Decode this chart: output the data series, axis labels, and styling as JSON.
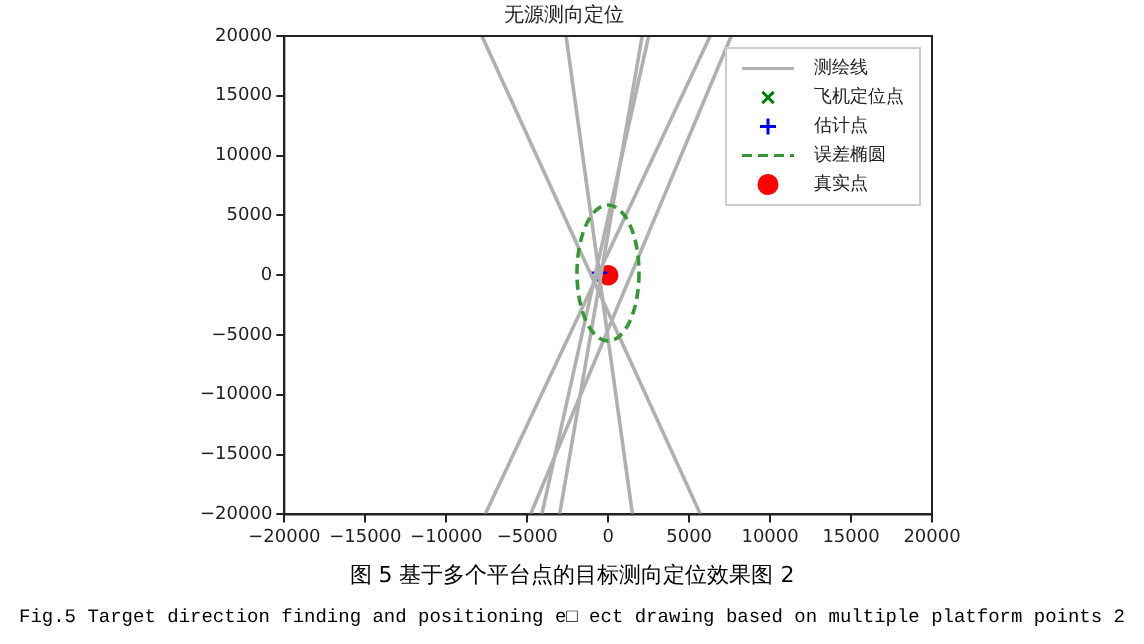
{
  "chart_data": {
    "type": "line",
    "title": "无源测向定位",
    "xlim": [
      -20000,
      20000
    ],
    "xticks": [
      -20000,
      -15000,
      -10000,
      -5000,
      0,
      5000,
      10000,
      15000,
      20000
    ],
    "ylim": [
      -20000,
      20000
    ],
    "yticks": [
      -20000,
      -15000,
      -10000,
      -5000,
      0,
      5000,
      10000,
      15000,
      20000
    ],
    "grid": false,
    "legend": "top right",
    "annotations": [
      "图 5 基于多个平台点的目标测向定位效果图 2",
      "Fig.5 Target direction finding and positioning e□ ect drawing based on multiple platform points 2"
    ],
    "series": [
      {
        "name": "测绘线",
        "color": "#b0b0b0",
        "line_style": "solid",
        "x": [
          -7800,
          5700
        ],
        "values": [
          20000,
          -20000
        ]
      },
      {
        "color": "#b0b0b0",
        "line_style": "solid",
        "x": [
          -2600,
          1500
        ],
        "values": [
          20000,
          -20000
        ]
      },
      {
        "color": "#b0b0b0",
        "line_style": "solid",
        "x": [
          2100,
          -3000
        ],
        "values": [
          20000,
          -20000
        ]
      },
      {
        "color": "#b0b0b0",
        "line_style": "solid",
        "x": [
          2500,
          -4100
        ],
        "values": [
          20000,
          -20000
        ]
      },
      {
        "color": "#b0b0b0",
        "line_style": "solid",
        "x": [
          6300,
          -7600
        ],
        "values": [
          20000,
          -20000
        ]
      },
      {
        "color": "#b0b0b0",
        "line_style": "solid",
        "x": [
          7600,
          -4800
        ],
        "values": [
          20000,
          -20000
        ]
      },
      {
        "name": "飞机定位点",
        "type": "scatter",
        "color": "#008000",
        "marker": "cross"
      },
      {
        "name": "估计点",
        "type": "scatter",
        "color": "#0000ff",
        "marker": "plus",
        "x": [
          -600
        ],
        "values": [
          200
        ]
      },
      {
        "name": "误差椭圆",
        "type": "line",
        "color": "#339933",
        "line_style": "dashed"
      },
      {
        "name": "真实点",
        "type": "scatter",
        "color": "#ff0000",
        "marker": "circle",
        "x": [
          0
        ],
        "values": [
          0
        ]
      }
    ]
  }
}
